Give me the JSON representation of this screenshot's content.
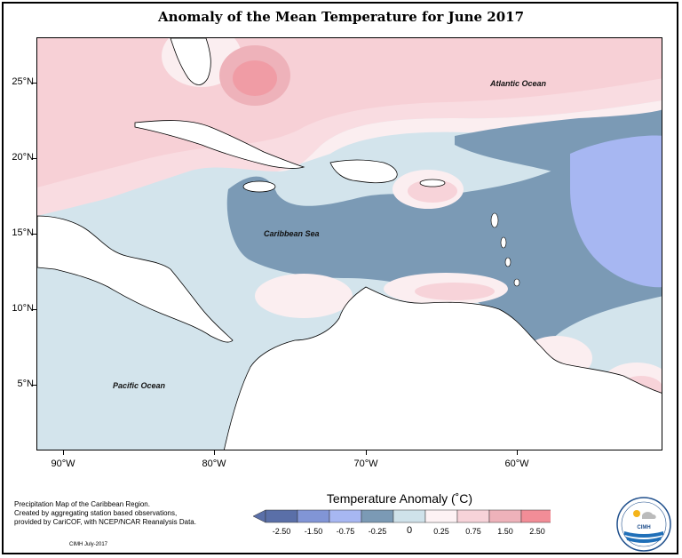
{
  "title": "Anomaly of the Mean Temperature for June 2017",
  "map": {
    "labels": {
      "atlantic": "Atlantic Ocean",
      "caribbean": "Caribbean Sea",
      "pacific": "Pacific Ocean"
    },
    "lat_ticks": [
      "25°N",
      "20°N",
      "15°N",
      "10°N",
      "5°N"
    ],
    "lon_ticks": [
      "90°W",
      "80°W",
      "70°W",
      "60°W"
    ]
  },
  "legend": {
    "title": "Temperature Anomaly (˚C)",
    "ticks": [
      "-2.50",
      "-1.50",
      "-0.75",
      "-0.25",
      "0",
      "0.25",
      "0.75",
      "1.50",
      "2.50"
    ],
    "colors": [
      "#5a6fa8",
      "#8195d6",
      "#a7b7f2",
      "#7b9ab5",
      "#cfe2ea",
      "#fdf2f4",
      "#f7d3d9",
      "#eeb2ba",
      "#f28d97"
    ]
  },
  "footnote": {
    "lines": [
      "Precipitation Map of the Caribbean Region.",
      "Created by aggregating station based observations,",
      "provided by CariCOF, with NCEP/NCAR Reanalysis Data."
    ],
    "credit": "CIMH July-2017"
  },
  "logo": {
    "text": "CIMH"
  }
}
